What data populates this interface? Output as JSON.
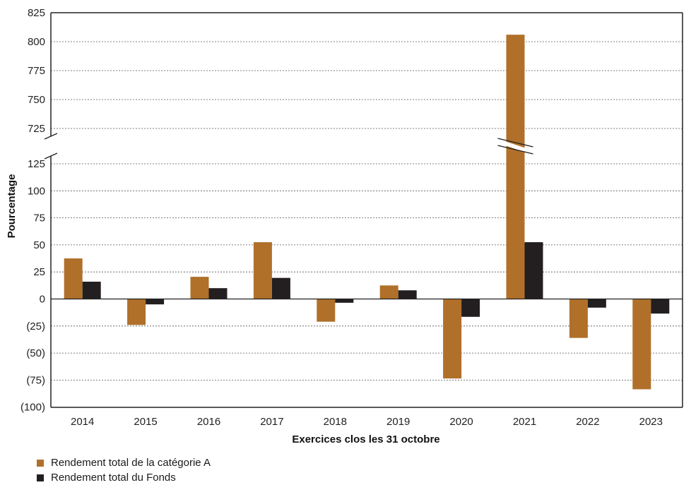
{
  "chart_data": {
    "type": "bar",
    "title": "",
    "xlabel": "Exercices clos les 31 octobre",
    "ylabel": "Pourcentage",
    "categories": [
      "2014",
      "2015",
      "2016",
      "2017",
      "2018",
      "2019",
      "2020",
      "2021",
      "2022",
      "2023"
    ],
    "series": [
      {
        "name": "Rendement total de la catégorie A",
        "color": "#b0702a",
        "values": [
          37.5,
          -24,
          20.5,
          52.5,
          -21,
          12.5,
          -73.5,
          806,
          -36,
          -83.5
        ]
      },
      {
        "name": "Rendement total du Fonds",
        "color": "#231f20",
        "values": [
          16,
          -5,
          10,
          19.5,
          -3.5,
          8,
          -16.5,
          52.5,
          -8,
          -13.5
        ]
      }
    ],
    "axis_break": {
      "lower_max": 125,
      "upper_min": 725
    },
    "ylim": [
      -100,
      825
    ],
    "y_ticks_lower": [
      -100,
      -75,
      -50,
      -25,
      0,
      25,
      50,
      75,
      100,
      125
    ],
    "y_ticks_upper": [
      725,
      750,
      775,
      800,
      825
    ],
    "y_tick_labels_lower": [
      "(100)",
      "(75)",
      "(50)",
      "(25)",
      "0",
      "25",
      "50",
      "75",
      "100",
      "125"
    ],
    "y_tick_labels_upper": [
      "725",
      "750",
      "775",
      "800",
      "825"
    ],
    "grid": "dashed horizontal",
    "legend_position": "bottom-left"
  }
}
